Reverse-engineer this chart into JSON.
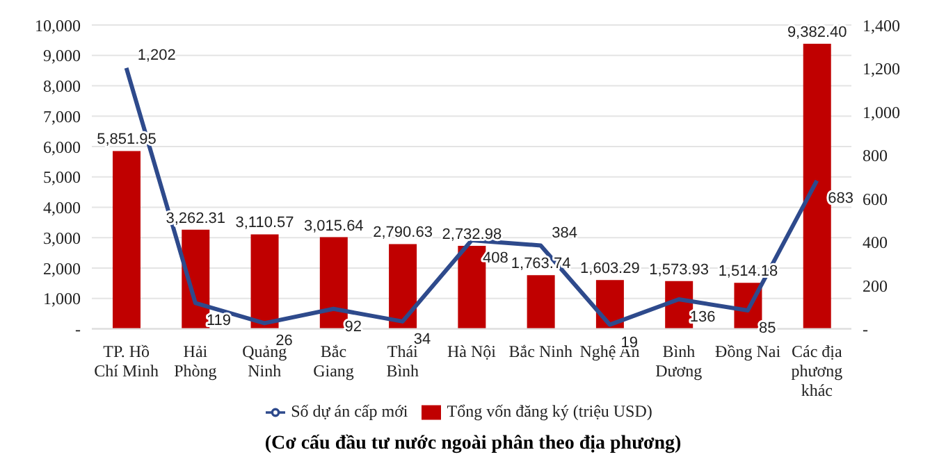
{
  "chart_data": {
    "type": "bar",
    "categories": [
      "TP. Hồ Chí Minh",
      "Hải Phòng",
      "Quảng Ninh",
      "Bắc Giang",
      "Thái Bình",
      "Hà Nội",
      "Bắc Ninh",
      "Nghệ An",
      "Bình Dương",
      "Đồng Nai",
      "Các địa phương khác"
    ],
    "series": [
      {
        "name": "Tổng vốn đăng ký (triệu USD)",
        "type": "bar",
        "color": "#c00000",
        "values": [
          5851.95,
          3262.31,
          3110.57,
          3015.64,
          2790.63,
          2732.98,
          1763.74,
          1603.29,
          1573.93,
          1514.18,
          9382.4
        ],
        "value_labels": [
          "5,851.95",
          "3,262.31",
          "3,110.57",
          "3,015.64",
          "2,790.63",
          "2,732.98",
          "1,763.74",
          "1,603.29",
          "1,573.93",
          "1,514.18",
          "9,382.40"
        ]
      },
      {
        "name": "Số dự án cấp mới",
        "type": "line",
        "axis": "y2",
        "color": "#2e4a8c",
        "values": [
          1202,
          119,
          26,
          92,
          34,
          408,
          384,
          19,
          136,
          85,
          683
        ],
        "value_labels": [
          "1,202",
          "119",
          "26",
          "92",
          "34",
          "408",
          "384",
          "19",
          "136",
          "85",
          "683"
        ]
      }
    ],
    "ylim": [
      0,
      10000
    ],
    "yticks": [
      {
        "value": 0,
        "label": "-"
      },
      {
        "value": 1000,
        "label": "1,000"
      },
      {
        "value": 2000,
        "label": "2,000"
      },
      {
        "value": 3000,
        "label": "3,000"
      },
      {
        "value": 4000,
        "label": "4,000"
      },
      {
        "value": 5000,
        "label": "5,000"
      },
      {
        "value": 6000,
        "label": "6,000"
      },
      {
        "value": 7000,
        "label": "7,000"
      },
      {
        "value": 8000,
        "label": "8,000"
      },
      {
        "value": 9000,
        "label": "9,000"
      },
      {
        "value": 10000,
        "label": "10,000"
      }
    ],
    "y2lim": [
      0,
      1400
    ],
    "y2ticks": [
      {
        "value": 0,
        "label": "-"
      },
      200,
      400,
      600,
      800,
      {
        "value": 1000,
        "label": "1,000"
      },
      {
        "value": 1200,
        "label": "1,200"
      },
      {
        "value": 1400,
        "label": "1,400"
      }
    ],
    "grid": "y",
    "legend": "bottom",
    "marker": "none",
    "annotations": [
      "(Cơ cấu đầu tư nước ngoài phân theo địa phương)"
    ]
  }
}
